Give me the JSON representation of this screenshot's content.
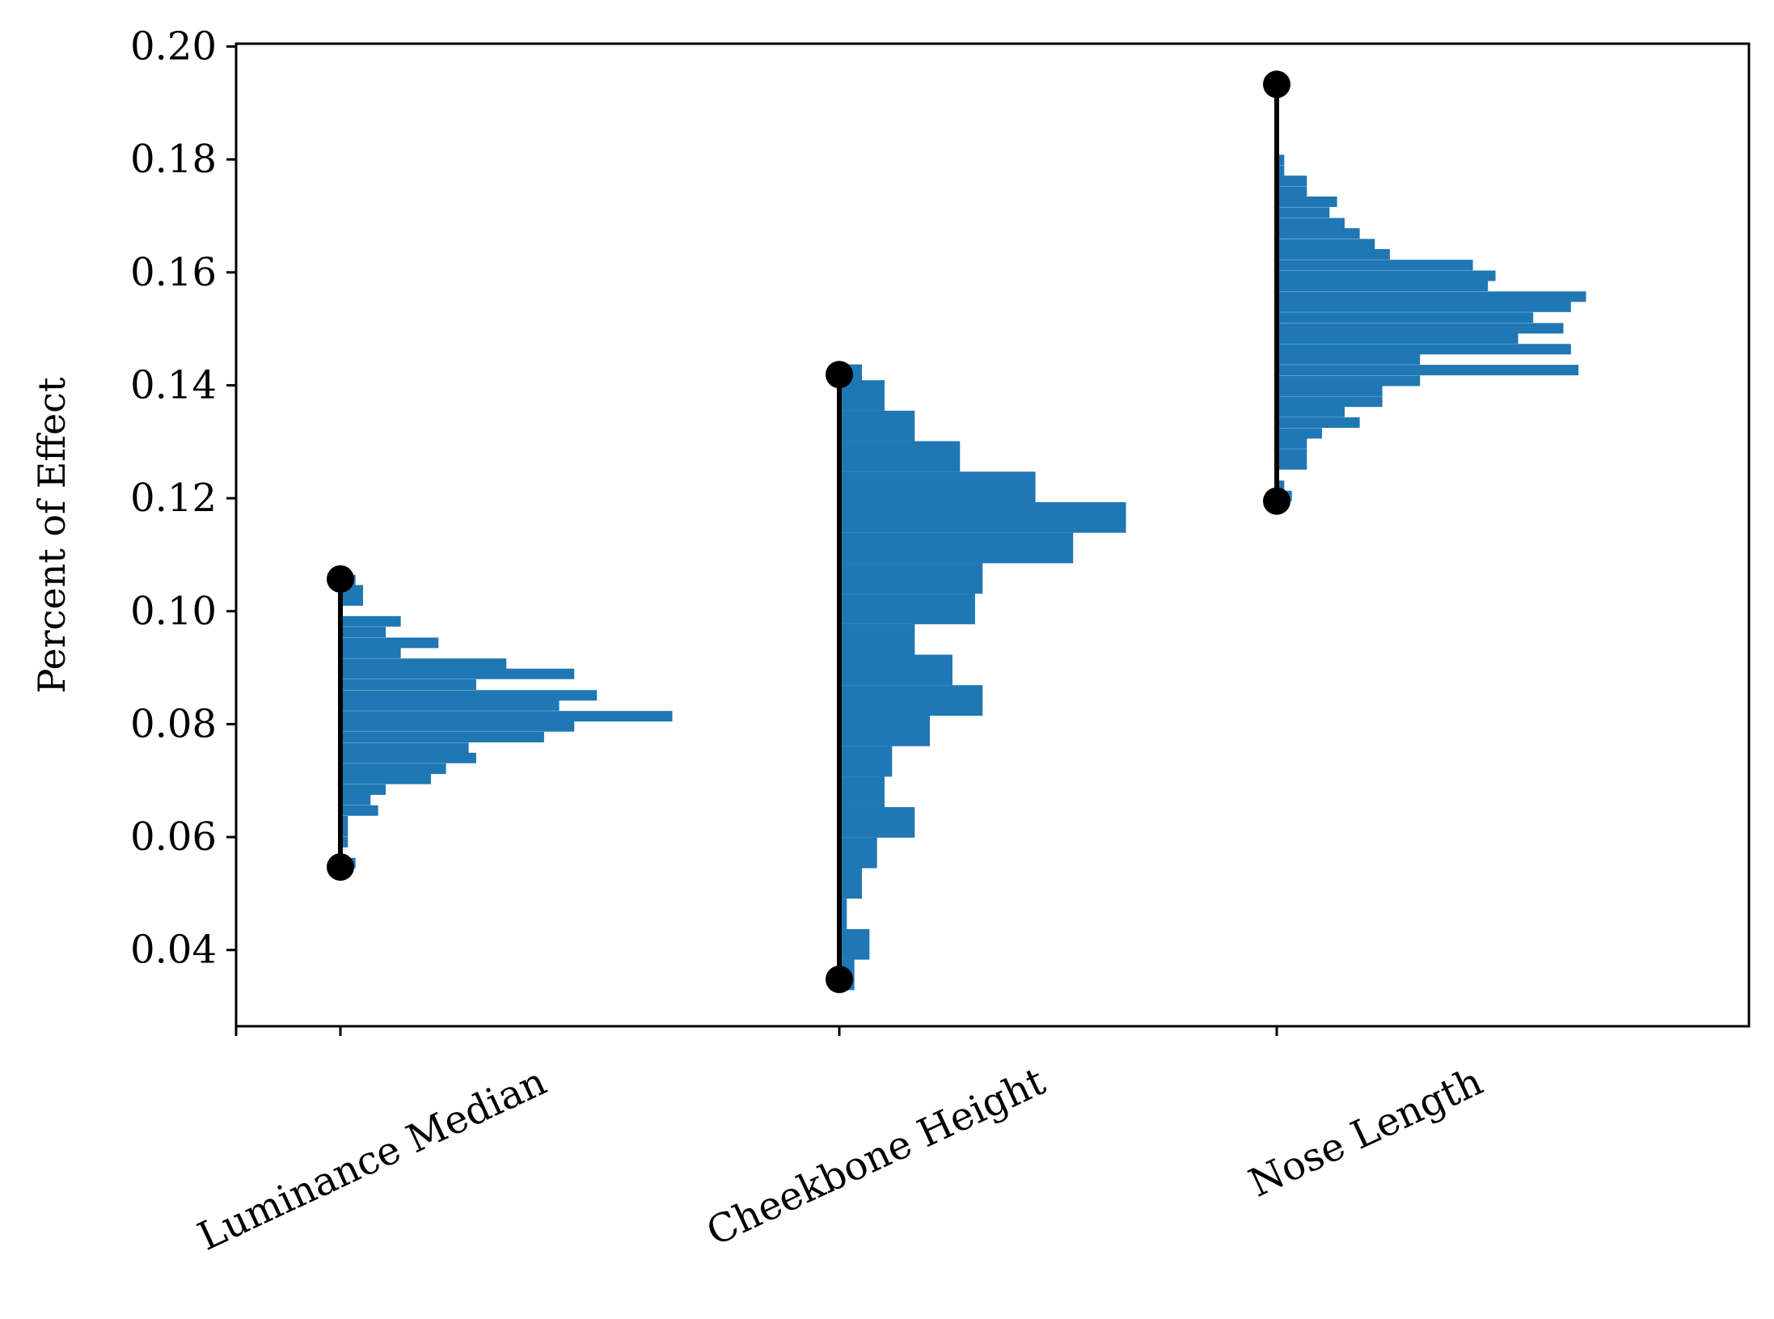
{
  "chart_data": {
    "type": "bar",
    "title": "",
    "xlabel": "",
    "ylabel": "Percent of Effect",
    "ylim": [
      0.0265,
      0.2005
    ],
    "yticks": [
      "0.04",
      "0.06",
      "0.08",
      "0.10",
      "0.12",
      "0.14",
      "0.16",
      "0.18",
      "0.20"
    ],
    "categories": [
      "Luminance Median",
      "Cheekbone Height",
      "Nose Length"
    ],
    "grid": false,
    "legend": "none",
    "colors": {
      "bars": "#1f77b4",
      "interval": "#000000",
      "axes": "#000000"
    },
    "intervals": [
      {
        "category": "Luminance Median",
        "low": 0.0547,
        "high": 0.1057
      },
      {
        "category": "Cheekbone Height",
        "low": 0.0348,
        "high": 0.1419
      },
      {
        "category": "Nose Length",
        "low": 0.1195,
        "high": 0.1933
      }
    ],
    "histograms": [
      {
        "category": "Luminance Median",
        "bin_width": 0.00186,
        "bins": [
          {
            "center": 0.0554,
            "count": 2
          },
          {
            "center": 0.0573,
            "count": 0
          },
          {
            "center": 0.0591,
            "count": 1
          },
          {
            "center": 0.061,
            "count": 1
          },
          {
            "center": 0.0628,
            "count": 1
          },
          {
            "center": 0.0647,
            "count": 5
          },
          {
            "center": 0.0666,
            "count": 4
          },
          {
            "center": 0.0684,
            "count": 6
          },
          {
            "center": 0.0703,
            "count": 12
          },
          {
            "center": 0.0721,
            "count": 14
          },
          {
            "center": 0.074,
            "count": 18
          },
          {
            "center": 0.0758,
            "count": 17
          },
          {
            "center": 0.0777,
            "count": 27
          },
          {
            "center": 0.0796,
            "count": 31
          },
          {
            "center": 0.0814,
            "count": 44
          },
          {
            "center": 0.0833,
            "count": 29
          },
          {
            "center": 0.0851,
            "count": 34
          },
          {
            "center": 0.087,
            "count": 18
          },
          {
            "center": 0.0889,
            "count": 31
          },
          {
            "center": 0.0907,
            "count": 22
          },
          {
            "center": 0.0926,
            "count": 8
          },
          {
            "center": 0.0944,
            "count": 13
          },
          {
            "center": 0.0963,
            "count": 6
          },
          {
            "center": 0.0982,
            "count": 8
          },
          {
            "center": 0.1,
            "count": 0
          },
          {
            "center": 0.1019,
            "count": 3
          },
          {
            "center": 0.1037,
            "count": 3
          },
          {
            "center": 0.1055,
            "count": 2
          }
        ]
      },
      {
        "category": "Cheekbone Height",
        "bin_width": 0.00541,
        "bins": [
          {
            "center": 0.0356,
            "count": 2
          },
          {
            "center": 0.041,
            "count": 4
          },
          {
            "center": 0.0464,
            "count": 1
          },
          {
            "center": 0.0518,
            "count": 3
          },
          {
            "center": 0.0572,
            "count": 5
          },
          {
            "center": 0.0626,
            "count": 10
          },
          {
            "center": 0.068,
            "count": 6
          },
          {
            "center": 0.0734,
            "count": 7
          },
          {
            "center": 0.0788,
            "count": 12
          },
          {
            "center": 0.0842,
            "count": 19
          },
          {
            "center": 0.0896,
            "count": 15
          },
          {
            "center": 0.095,
            "count": 10
          },
          {
            "center": 0.1004,
            "count": 18
          },
          {
            "center": 0.1058,
            "count": 19
          },
          {
            "center": 0.1112,
            "count": 31
          },
          {
            "center": 0.1166,
            "count": 38
          },
          {
            "center": 0.122,
            "count": 26
          },
          {
            "center": 0.1274,
            "count": 16
          },
          {
            "center": 0.1328,
            "count": 10
          },
          {
            "center": 0.1382,
            "count": 6
          },
          {
            "center": 0.141,
            "count": 3
          }
        ]
      },
      {
        "category": "Nose Length",
        "bin_width": 0.00186,
        "bins": [
          {
            "center": 0.1204,
            "count": 2
          },
          {
            "center": 0.1222,
            "count": 1
          },
          {
            "center": 0.1241,
            "count": 0
          },
          {
            "center": 0.126,
            "count": 4
          },
          {
            "center": 0.1278,
            "count": 4
          },
          {
            "center": 0.1297,
            "count": 4
          },
          {
            "center": 0.1315,
            "count": 6
          },
          {
            "center": 0.1334,
            "count": 11
          },
          {
            "center": 0.1353,
            "count": 9
          },
          {
            "center": 0.1371,
            "count": 14
          },
          {
            "center": 0.139,
            "count": 14
          },
          {
            "center": 0.1408,
            "count": 19
          },
          {
            "center": 0.1427,
            "count": 40
          },
          {
            "center": 0.1446,
            "count": 19
          },
          {
            "center": 0.1464,
            "count": 39
          },
          {
            "center": 0.1483,
            "count": 32
          },
          {
            "center": 0.1501,
            "count": 38
          },
          {
            "center": 0.152,
            "count": 34
          },
          {
            "center": 0.1539,
            "count": 39
          },
          {
            "center": 0.1557,
            "count": 41
          },
          {
            "center": 0.1576,
            "count": 28
          },
          {
            "center": 0.1594,
            "count": 29
          },
          {
            "center": 0.1613,
            "count": 26
          },
          {
            "center": 0.1632,
            "count": 15
          },
          {
            "center": 0.165,
            "count": 13
          },
          {
            "center": 0.1669,
            "count": 11
          },
          {
            "center": 0.1687,
            "count": 9
          },
          {
            "center": 0.1706,
            "count": 7
          },
          {
            "center": 0.1725,
            "count": 8
          },
          {
            "center": 0.1743,
            "count": 4
          },
          {
            "center": 0.1762,
            "count": 4
          },
          {
            "center": 0.178,
            "count": 1
          },
          {
            "center": 0.1799,
            "count": 1
          }
        ]
      }
    ]
  }
}
